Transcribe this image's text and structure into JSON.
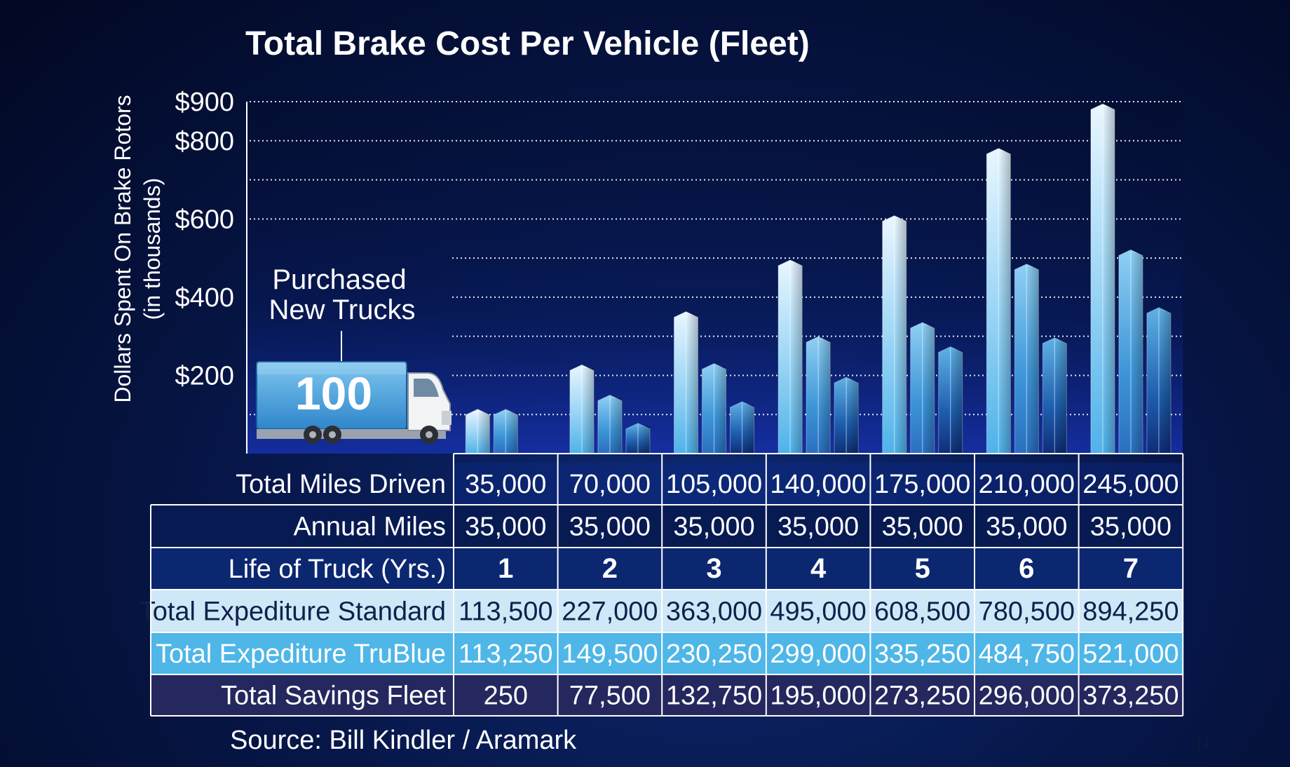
{
  "chart_data": {
    "type": "bar",
    "title": "Total Brake Cost Per Vehicle (Fleet)",
    "ylabel": "Dollars Spent On Brake Rotors",
    "ylabel_sub": "(in thousands)",
    "ylim": [
      0,
      900
    ],
    "y_ticks": [
      {
        "value": 900,
        "label": "$900"
      },
      {
        "value": 800,
        "label": "$800"
      },
      {
        "value": 600,
        "label": "$600"
      },
      {
        "value": 400,
        "label": "$400"
      },
      {
        "value": 200,
        "label": "$200"
      }
    ],
    "grid_values": [
      100,
      200,
      300,
      400,
      500,
      600,
      700,
      800,
      900
    ],
    "categories": [
      "1",
      "2",
      "3",
      "4",
      "5",
      "6",
      "7"
    ],
    "series": [
      {
        "values": [
          113.5,
          227.0,
          363.0,
          495.0,
          608.5,
          780.5,
          894.25
        ]
      },
      {
        "values": [
          113.25,
          149.5,
          230.25,
          299.0,
          335.25,
          484.75,
          521.0
        ]
      },
      {
        "values": [
          0.25,
          77.5,
          132.75,
          195.0,
          273.25,
          296.0,
          373.25
        ]
      }
    ],
    "annotation": {
      "line1": "Purchased",
      "line2": "New Trucks",
      "truck_count": "100"
    },
    "grid": true
  },
  "table": {
    "rows": [
      {
        "label": "Total Miles Driven",
        "values": [
          "35,000",
          "70,000",
          "105,000",
          "140,000",
          "175,000",
          "210,000",
          "245,000"
        ],
        "bg": "transparent",
        "fg": "#ffffff",
        "bold": false
      },
      {
        "label": "Annual Miles",
        "values": [
          "35,000",
          "35,000",
          "35,000",
          "35,000",
          "35,000",
          "35,000",
          "35,000"
        ],
        "bg": "#081a52",
        "fg": "#ffffff",
        "bold": false
      },
      {
        "label": "Life of Truck (Yrs.)",
        "values": [
          "1",
          "2",
          "3",
          "4",
          "5",
          "6",
          "7"
        ],
        "bg": "#0b2770",
        "fg": "#ffffff",
        "bold": true
      },
      {
        "label": "Total Expediture Standard",
        "values": [
          "113,500",
          "227,000",
          "363,000",
          "495,000",
          "608,500",
          "780,500",
          "894,250"
        ],
        "bg": "#cfe8f7",
        "fg": "#10204a",
        "bold": false
      },
      {
        "label": "Total Expediture TruBlue",
        "values": [
          "113,250",
          "149,500",
          "230,250",
          "299,000",
          "335,250",
          "484,750",
          "521,000"
        ],
        "bg": "#4fb6e8",
        "fg": "#ffffff",
        "bold": false
      },
      {
        "label": "Total Savings Fleet",
        "values": [
          "250",
          "77,500",
          "132,750",
          "195,000",
          "273,250",
          "296,000",
          "373,250"
        ],
        "bg": "#25285e",
        "fg": "#ffffff",
        "bold": false
      }
    ]
  },
  "footer": {
    "source": "Source: Bill Kindler / Aramark",
    "page_number": "11"
  }
}
